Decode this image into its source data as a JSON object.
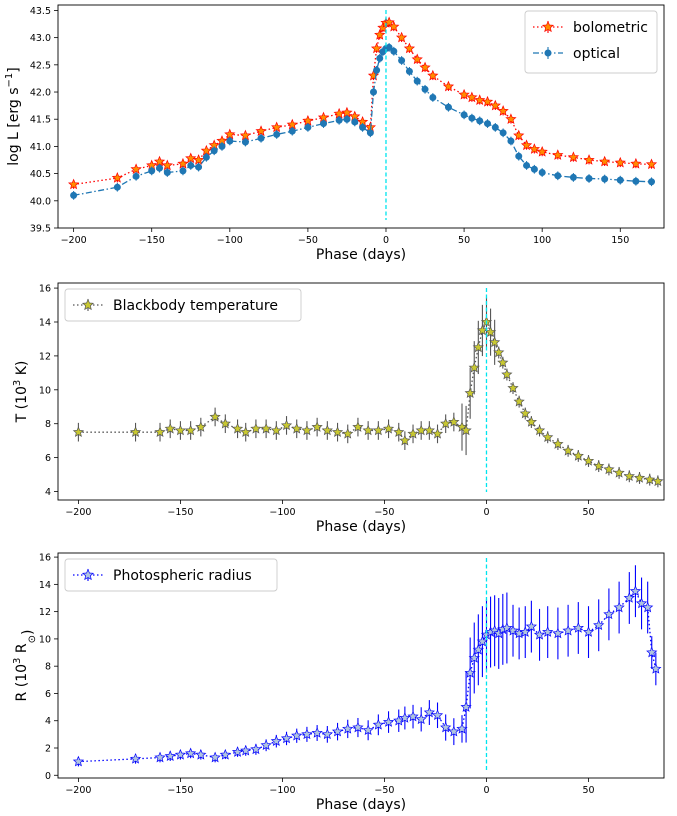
{
  "chart_data": [
    {
      "type": "line",
      "xlabel": "Phase (days)",
      "ylabel": "log L [erg s$^{-1}$]",
      "ylabel_parts": [
        "log L [erg s",
        "−1",
        "]"
      ],
      "xlim": [
        -210,
        178
      ],
      "ylim": [
        39.5,
        43.6
      ],
      "xticks": [
        -200,
        -150,
        -100,
        -50,
        0,
        50,
        100,
        150
      ],
      "yticks": [
        39.5,
        40.0,
        40.5,
        41.0,
        41.5,
        42.0,
        42.5,
        43.0,
        43.5
      ],
      "ytick_labels": [
        "39.5",
        "40.0",
        "40.5",
        "41.0",
        "41.5",
        "42.0",
        "42.5",
        "43.0",
        "43.5"
      ],
      "vline_x": 0,
      "legend_position": "upper right",
      "series": [
        {
          "name": "bolometric",
          "color": "#ff0000",
          "marker_fill": "#ff8c00",
          "marker": "star",
          "linestyle": "dotted",
          "x": [
            -200,
            -172,
            -160,
            -150,
            -145,
            -140,
            -130,
            -125,
            -120,
            -115,
            -110,
            -105,
            -100,
            -90,
            -80,
            -70,
            -60,
            -50,
            -40,
            -30,
            -25,
            -20,
            -15,
            -10,
            -8,
            -6,
            -4,
            -2,
            0,
            2,
            5,
            10,
            15,
            20,
            25,
            30,
            40,
            50,
            55,
            60,
            65,
            70,
            75,
            80,
            85,
            90,
            95,
            100,
            110,
            120,
            130,
            140,
            150,
            160,
            170
          ],
          "y": [
            40.3,
            40.42,
            40.58,
            40.65,
            40.72,
            40.65,
            40.68,
            40.78,
            40.75,
            40.92,
            41.02,
            41.1,
            41.22,
            41.2,
            41.28,
            41.35,
            41.4,
            41.47,
            41.53,
            41.6,
            41.62,
            41.55,
            41.45,
            41.35,
            42.3,
            42.8,
            43.05,
            43.18,
            43.27,
            43.28,
            43.2,
            43.0,
            42.8,
            42.6,
            42.45,
            42.3,
            42.1,
            41.95,
            41.9,
            41.85,
            41.82,
            41.75,
            41.65,
            41.5,
            41.2,
            41.02,
            40.95,
            40.9,
            40.84,
            40.8,
            40.75,
            40.72,
            40.7,
            40.68,
            40.67
          ]
        },
        {
          "name": "optical",
          "color": "#1f77b4",
          "marker_fill": "#1f77b4",
          "marker": "circle",
          "linestyle": "dashdot",
          "x": [
            -200,
            -172,
            -160,
            -150,
            -145,
            -140,
            -130,
            -125,
            -120,
            -115,
            -110,
            -105,
            -100,
            -90,
            -80,
            -70,
            -60,
            -50,
            -40,
            -30,
            -25,
            -20,
            -15,
            -10,
            -8,
            -6,
            -4,
            -2,
            0,
            2,
            5,
            10,
            15,
            20,
            25,
            30,
            40,
            50,
            55,
            60,
            65,
            70,
            75,
            80,
            85,
            90,
            95,
            100,
            110,
            120,
            130,
            140,
            150,
            160,
            170
          ],
          "y": [
            40.1,
            40.25,
            40.45,
            40.55,
            40.6,
            40.52,
            40.55,
            40.65,
            40.62,
            40.8,
            40.92,
            41.0,
            41.1,
            41.08,
            41.15,
            41.22,
            41.28,
            41.35,
            41.42,
            41.48,
            41.5,
            41.45,
            41.35,
            41.25,
            42.0,
            42.4,
            42.62,
            42.74,
            42.8,
            42.82,
            42.75,
            42.58,
            42.38,
            42.2,
            42.05,
            41.9,
            41.72,
            41.58,
            41.52,
            41.47,
            41.42,
            41.35,
            41.25,
            41.1,
            40.82,
            40.65,
            40.58,
            40.52,
            40.46,
            40.43,
            40.41,
            40.4,
            40.38,
            40.36,
            40.35
          ]
        }
      ]
    },
    {
      "type": "line",
      "xlabel": "Phase (days)",
      "ylabel": "T (10$^3$ K)",
      "ylabel_parts": [
        "T (10",
        "3",
        " K)"
      ],
      "xlim": [
        -210,
        87
      ],
      "ylim": [
        3.5,
        16.3
      ],
      "xticks": [
        -200,
        -150,
        -100,
        -50,
        0,
        50
      ],
      "yticks": [
        4,
        6,
        8,
        10,
        12,
        14,
        16
      ],
      "ytick_labels": [
        "4",
        "6",
        "8",
        "10",
        "12",
        "14",
        "16"
      ],
      "vline_x": 0,
      "legend_position": "upper left",
      "series": [
        {
          "name": "Blackbody temperature",
          "color": "#555555",
          "marker_fill": "#c8c832",
          "marker": "star",
          "linestyle": "dotted",
          "x": [
            -200,
            -172,
            -160,
            -155,
            -150,
            -145,
            -140,
            -133,
            -128,
            -122,
            -118,
            -113,
            -108,
            -103,
            -98,
            -93,
            -88,
            -83,
            -78,
            -73,
            -68,
            -63,
            -58,
            -53,
            -48,
            -43,
            -40,
            -36,
            -32,
            -28,
            -24,
            -20,
            -16,
            -12,
            -10,
            -8,
            -6,
            -4,
            -2,
            0,
            2,
            4,
            6,
            8,
            10,
            13,
            16,
            19,
            22,
            26,
            30,
            35,
            40,
            45,
            50,
            55,
            60,
            65,
            70,
            75,
            80,
            84
          ],
          "y": [
            7.5,
            7.5,
            7.5,
            7.7,
            7.6,
            7.6,
            7.8,
            8.4,
            8.0,
            7.7,
            7.5,
            7.7,
            7.7,
            7.6,
            7.9,
            7.7,
            7.6,
            7.8,
            7.6,
            7.5,
            7.4,
            7.8,
            7.6,
            7.6,
            7.7,
            7.5,
            7.0,
            7.4,
            7.6,
            7.6,
            7.4,
            8.0,
            8.1,
            7.8,
            7.6,
            9.8,
            11.3,
            12.5,
            13.5,
            14.0,
            13.4,
            12.8,
            12.2,
            11.6,
            10.9,
            10.1,
            9.3,
            8.6,
            8.1,
            7.6,
            7.2,
            6.8,
            6.4,
            6.1,
            5.8,
            5.5,
            5.3,
            5.1,
            4.9,
            4.8,
            4.7,
            4.6
          ]
        }
      ]
    },
    {
      "type": "line",
      "xlabel": "Phase (days)",
      "ylabel": "R (10$^3$ R$_\\odot$)",
      "ylabel_parts": [
        "R (10",
        "3",
        "  R",
        "⊙",
        ")"
      ],
      "xlim": [
        -210,
        87
      ],
      "ylim": [
        -0.2,
        16.3
      ],
      "xticks": [
        -200,
        -150,
        -100,
        -50,
        0,
        50
      ],
      "yticks": [
        0,
        2,
        4,
        6,
        8,
        10,
        12,
        14,
        16
      ],
      "ytick_labels": [
        "0",
        "2",
        "4",
        "6",
        "8",
        "10",
        "12",
        "14",
        "16"
      ],
      "vline_x": 0,
      "legend_position": "upper left",
      "series": [
        {
          "name": "Photospheric radius",
          "color": "#0000ff",
          "marker_fill": "#b0c4de",
          "marker": "star",
          "linestyle": "dotted",
          "x": [
            -200,
            -172,
            -160,
            -155,
            -150,
            -145,
            -140,
            -133,
            -128,
            -122,
            -118,
            -113,
            -108,
            -103,
            -98,
            -93,
            -88,
            -83,
            -78,
            -73,
            -68,
            -63,
            -58,
            -53,
            -48,
            -43,
            -40,
            -36,
            -32,
            -28,
            -24,
            -20,
            -16,
            -12,
            -10,
            -8,
            -6,
            -4,
            -2,
            0,
            2,
            4,
            6,
            8,
            10,
            13,
            16,
            19,
            22,
            26,
            30,
            35,
            40,
            45,
            50,
            55,
            60,
            65,
            70,
            73,
            76,
            79,
            81,
            83
          ],
          "y": [
            1.0,
            1.2,
            1.3,
            1.4,
            1.5,
            1.6,
            1.5,
            1.3,
            1.5,
            1.7,
            1.8,
            1.9,
            2.2,
            2.5,
            2.7,
            2.9,
            3.0,
            3.1,
            3.0,
            3.2,
            3.4,
            3.5,
            3.3,
            3.7,
            3.9,
            4.0,
            4.2,
            4.3,
            4.1,
            4.6,
            4.4,
            3.5,
            3.2,
            3.4,
            5.0,
            7.5,
            8.6,
            9.2,
            9.8,
            10.3,
            10.5,
            10.6,
            10.4,
            10.7,
            10.8,
            10.6,
            10.4,
            10.5,
            10.9,
            10.3,
            10.5,
            10.4,
            10.6,
            10.8,
            10.5,
            11.0,
            11.8,
            12.3,
            13.0,
            13.5,
            12.6,
            12.3,
            9.0,
            7.8
          ]
        }
      ]
    }
  ]
}
